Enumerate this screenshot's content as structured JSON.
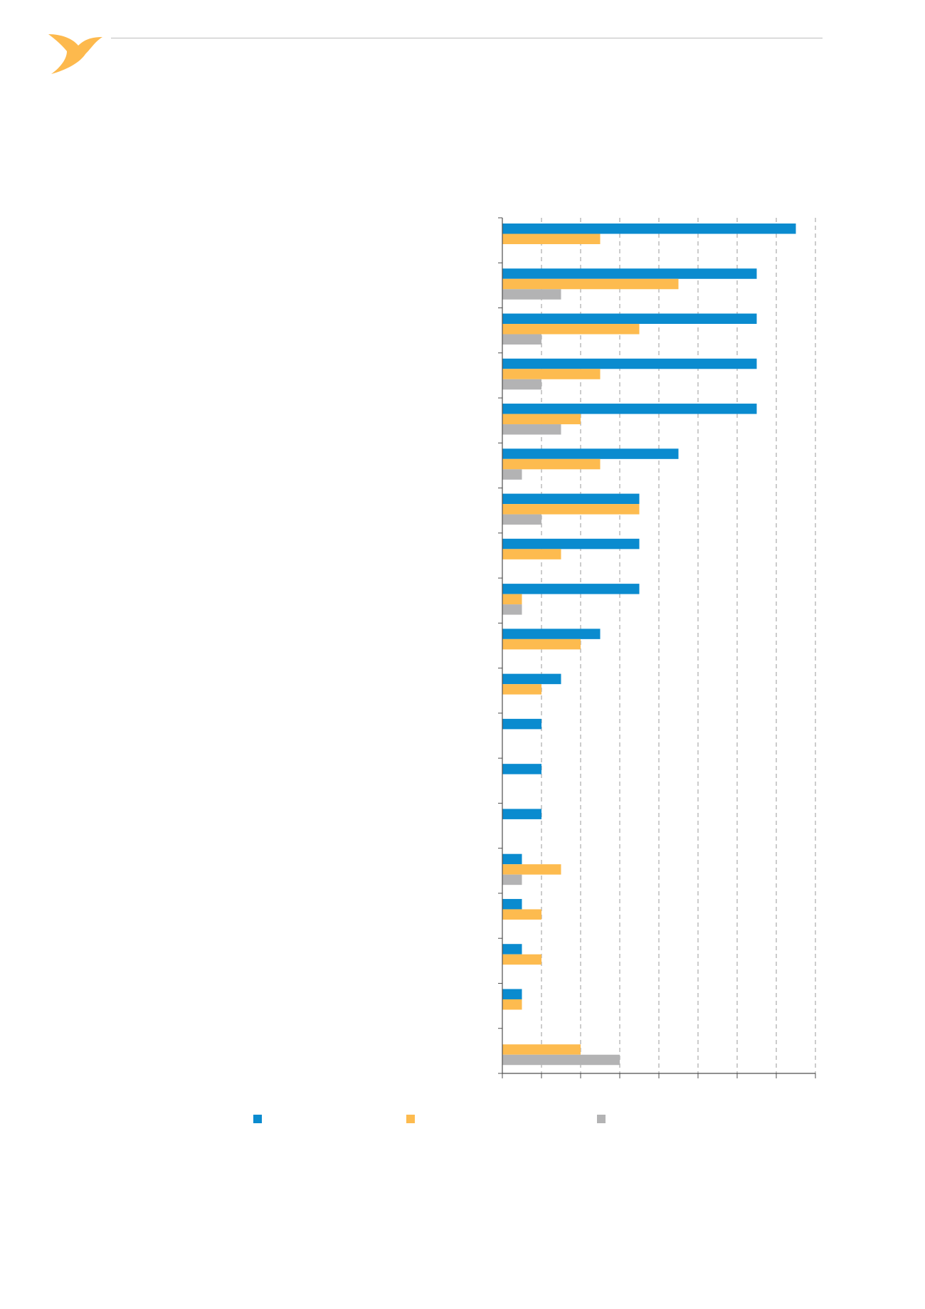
{
  "colors": {
    "accent": "#fdb94d",
    "series": [
      "#0a8bcf",
      "#fdbb4f",
      "#b3b3b4"
    ],
    "axis": "#4d4d4d",
    "grid": "#9a9a9a",
    "rule": "#bdbdbd"
  },
  "header": {
    "logo_icon": "bird-icon"
  },
  "chart_data": {
    "type": "bar",
    "orientation": "horizontal",
    "title": "",
    "xlabel": "",
    "ylabel": "",
    "xlim": [
      0,
      16
    ],
    "grid": true,
    "legend": "bottom",
    "categories": [
      "",
      "",
      "",
      "",
      "",
      "",
      "",
      "",
      "",
      "",
      "",
      "",
      "",
      "",
      "",
      "",
      "",
      "",
      ""
    ],
    "series": [
      {
        "name": "",
        "values": [
          15,
          13,
          13,
          13,
          13,
          9,
          7,
          7,
          7,
          5,
          3,
          2,
          2,
          2,
          1,
          1,
          1,
          1,
          0
        ]
      },
      {
        "name": "",
        "values": [
          5,
          9,
          7,
          5,
          4,
          5,
          7,
          3,
          1,
          4,
          2,
          0,
          0,
          0,
          3,
          2,
          2,
          1,
          4
        ]
      },
      {
        "name": "",
        "values": [
          0,
          3,
          2,
          2,
          3,
          1,
          2,
          0,
          1,
          0,
          0,
          0,
          0,
          0,
          1,
          0,
          0,
          0,
          6
        ]
      }
    ]
  }
}
